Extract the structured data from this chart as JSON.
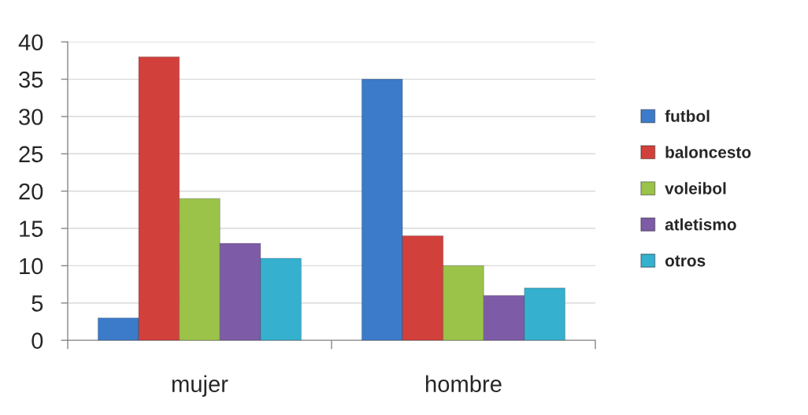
{
  "chart_data": {
    "type": "bar",
    "categories": [
      "mujer",
      "hombre"
    ],
    "series": [
      {
        "name": "futbol",
        "color": "#3c7bc9",
        "values": [
          3,
          35
        ]
      },
      {
        "name": "baloncesto",
        "color": "#d2403c",
        "values": [
          38,
          14
        ]
      },
      {
        "name": "voleibol",
        "color": "#9bc34a",
        "values": [
          19,
          10
        ]
      },
      {
        "name": "atletismo",
        "color": "#7d5ba6",
        "values": [
          13,
          6
        ]
      },
      {
        "name": "otros",
        "color": "#36b0cf",
        "values": [
          11,
          7
        ]
      }
    ],
    "ylim": [
      0,
      40
    ],
    "yticks": [
      0,
      5,
      10,
      15,
      20,
      25,
      30,
      35,
      40
    ],
    "grid": "y",
    "legend": "right"
  }
}
